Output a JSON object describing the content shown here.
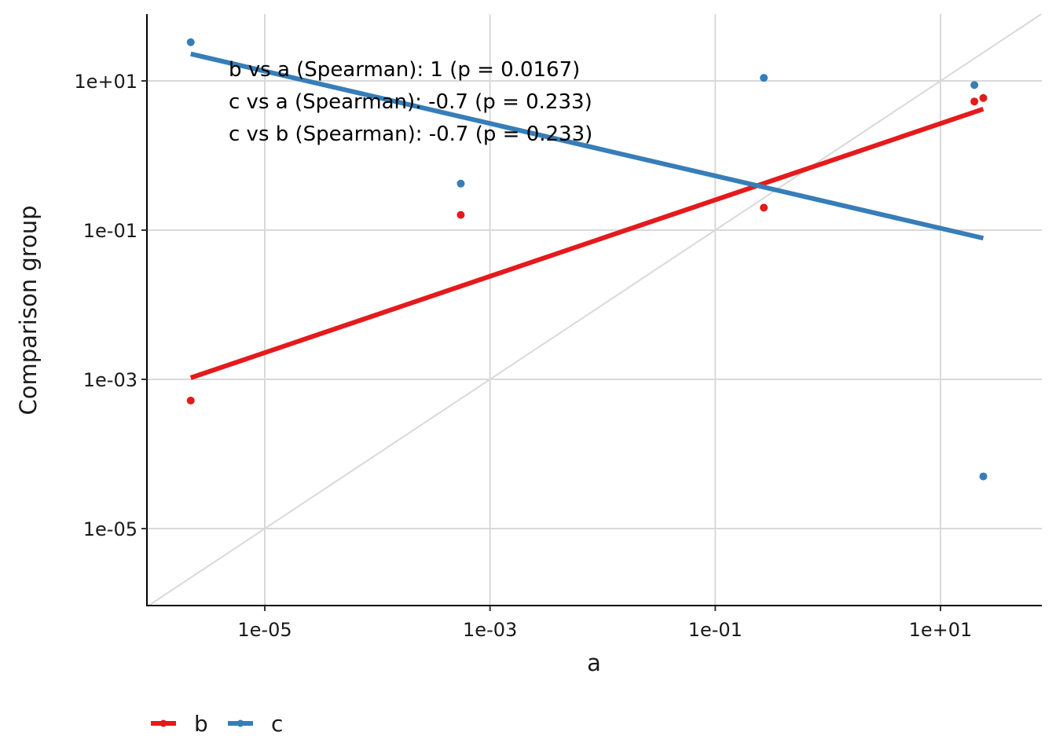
{
  "chart_data": {
    "type": "scatter",
    "x_scale": "log10",
    "y_scale": "log10",
    "xlabel": "a",
    "ylabel": "Comparison group",
    "xlim": [
      1e-06,
      80
    ],
    "ylim": [
      1e-06,
      70
    ],
    "x_ticks": [
      {
        "value": 1e-05,
        "label": "1e-05"
      },
      {
        "value": 0.001,
        "label": "1e-03"
      },
      {
        "value": 0.1,
        "label": "1e-01"
      },
      {
        "value": 10,
        "label": "1e+01"
      }
    ],
    "y_ticks": [
      {
        "value": 1e-05,
        "label": "1e-05"
      },
      {
        "value": 0.001,
        "label": "1e-03"
      },
      {
        "value": 0.1,
        "label": "1e-01"
      },
      {
        "value": 10,
        "label": "1e+01"
      }
    ],
    "grid": true,
    "identity_line": true,
    "series": [
      {
        "name": "b",
        "color": "#e41a1c",
        "points": [
          {
            "x": 2.2e-06,
            "y": 0.00052
          },
          {
            "x": 0.00055,
            "y": 0.16
          },
          {
            "x": 0.27,
            "y": 0.2
          },
          {
            "x": 20,
            "y": 5.3
          },
          {
            "x": 24,
            "y": 5.9
          }
        ],
        "fit": {
          "x": [
            2.2e-06,
            24
          ],
          "y": [
            0.00105,
            4.2
          ]
        }
      },
      {
        "name": "c",
        "color": "#377eb8",
        "points": [
          {
            "x": 2.2e-06,
            "y": 33
          },
          {
            "x": 0.00055,
            "y": 0.42
          },
          {
            "x": 0.27,
            "y": 11
          },
          {
            "x": 20,
            "y": 8.8
          },
          {
            "x": 24,
            "y": 5e-05
          }
        ],
        "fit": {
          "x": [
            2.2e-06,
            24
          ],
          "y": [
            23,
            0.078
          ]
        }
      }
    ],
    "annotations": [
      "b vs a (Spearman): 1 (p = 0.0167)",
      "c vs a (Spearman): -0.7 (p = 0.233)",
      "c vs b (Spearman): -0.7 (p = 0.233)"
    ],
    "legend_position": "bottom-left"
  }
}
